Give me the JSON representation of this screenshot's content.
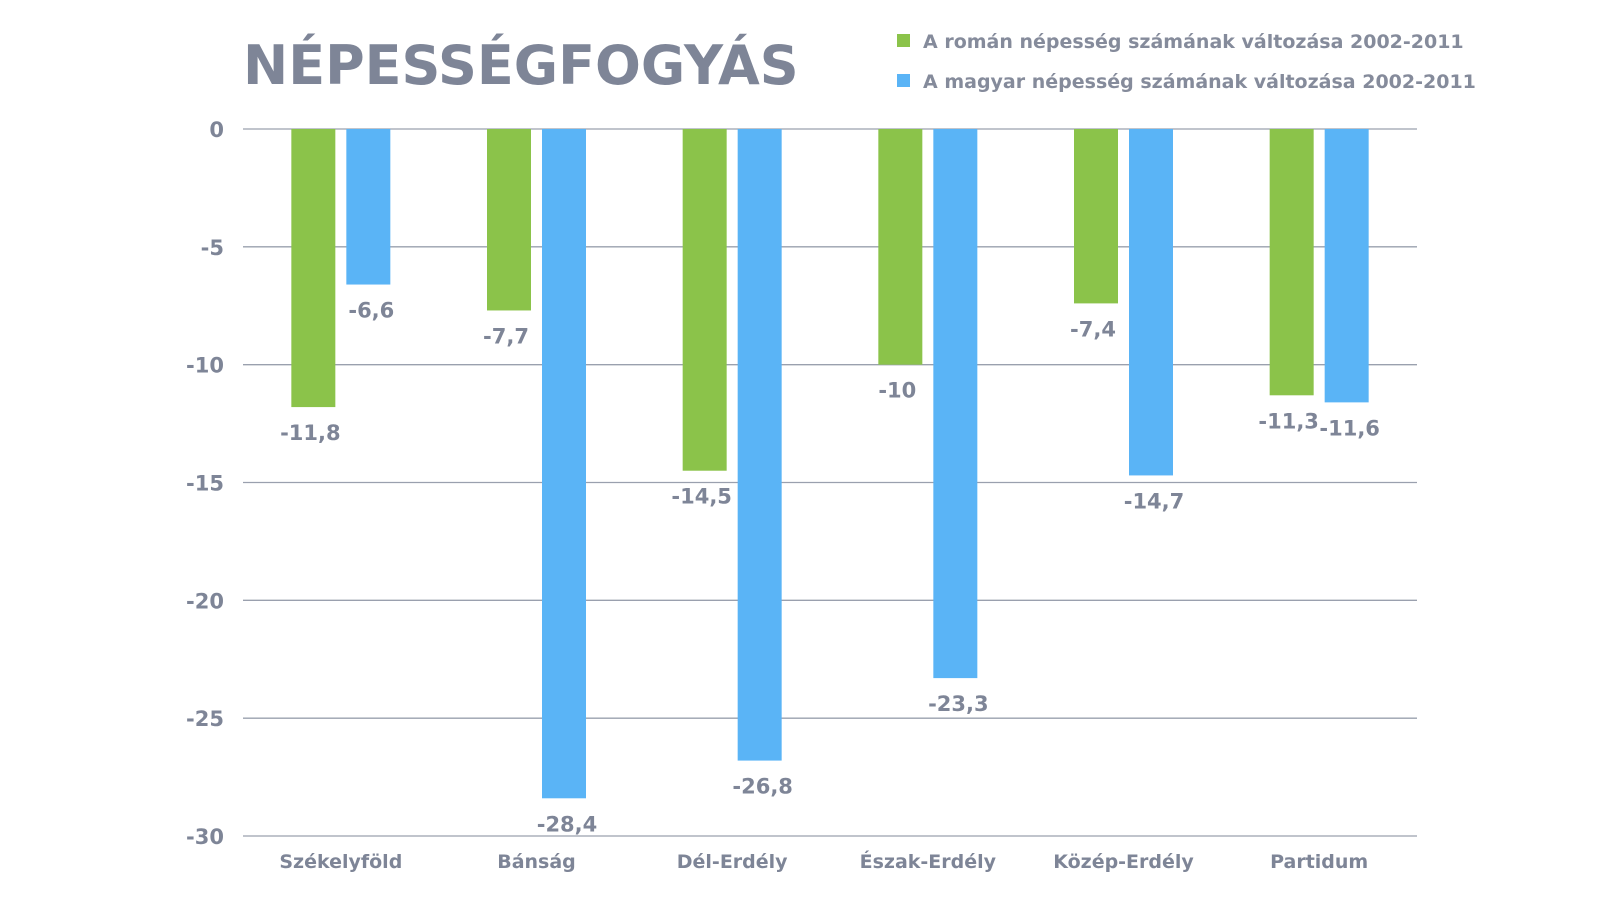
{
  "chart_data": {
    "type": "bar",
    "title": "NÉPESSÉGFOGYÁS",
    "categories": [
      "Székelyföld",
      "Bánság",
      "Dél-Erdély",
      "Észak-Erdély",
      "Közép-Erdély",
      "Partidum"
    ],
    "series": [
      {
        "name": "A román népesség számának változása 2002-2011",
        "color": "#8bc34a",
        "values": [
          -11.8,
          -7.7,
          -14.5,
          -10,
          -7.4,
          -11.3
        ],
        "labels": [
          "-11,8",
          "-7,7",
          "-14,5",
          "-10",
          "-7,4",
          "-11,3"
        ]
      },
      {
        "name": "A magyar népesség számának változása 2002-2011",
        "color": "#5ab4f6",
        "values": [
          -6.6,
          -28.4,
          -26.8,
          -23.3,
          -14.7,
          -11.6
        ],
        "labels": [
          "-6,6",
          "-28,4",
          "-26,8",
          "-23,3",
          "-14,7",
          "-11,6"
        ]
      }
    ],
    "ylim": [
      -30,
      0
    ],
    "yticks": [
      0,
      -5,
      -10,
      -15,
      -20,
      -25,
      -30
    ],
    "grid": true,
    "legend_position": "top-right",
    "xlabel": "",
    "ylabel": ""
  }
}
